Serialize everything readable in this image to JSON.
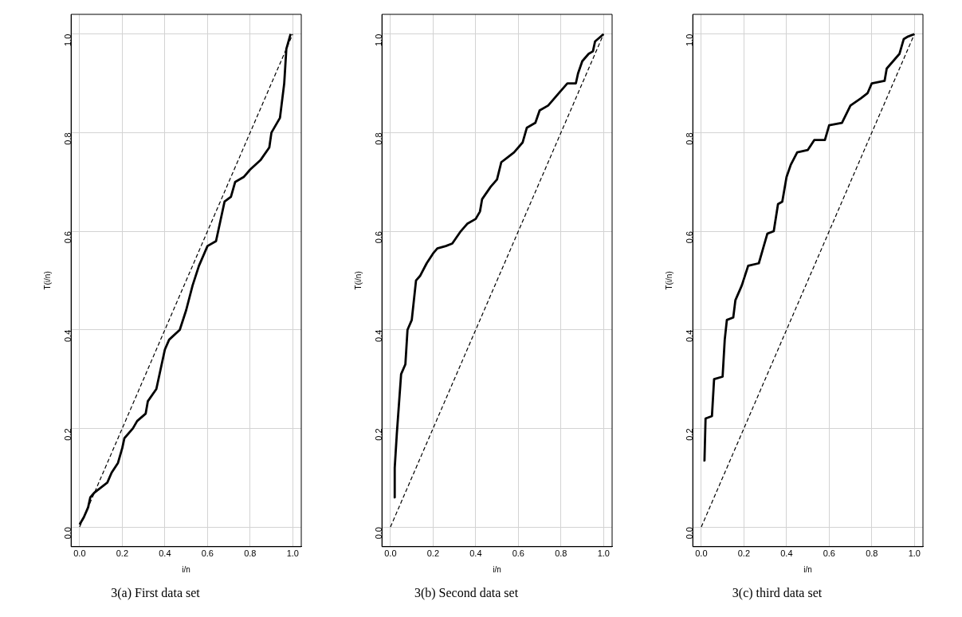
{
  "chart_data": [
    {
      "type": "line",
      "xlabel": "i/n",
      "ylabel": "T(i/n)",
      "annotations": [
        "3(a) First data set"
      ],
      "xlim": [
        -0.04,
        1.04
      ],
      "ylim": [
        -0.04,
        1.04
      ],
      "xticks": [
        {
          "value": 0,
          "label": "0.0"
        },
        {
          "value": 0.2,
          "label": "0.2"
        },
        {
          "value": 0.4,
          "label": "0.4"
        },
        {
          "value": 0.6,
          "label": "0.6"
        },
        {
          "value": 0.8,
          "label": "0.8"
        },
        {
          "value": 1,
          "label": "1.0"
        }
      ],
      "yticks": [
        {
          "value": 0,
          "label": "0.0"
        },
        {
          "value": 0.2,
          "label": "0.2"
        },
        {
          "value": 0.4,
          "label": "0.4"
        },
        {
          "value": 0.6,
          "label": "0.6"
        },
        {
          "value": 0.8,
          "label": "0.8"
        },
        {
          "value": 1,
          "label": "1.0"
        }
      ],
      "grid": true,
      "legend": false,
      "marker": "none",
      "series": [
        {
          "color": "#000000",
          "line_style": "solid",
          "x": [
            0,
            0.02,
            0.04,
            0.05,
            0.07,
            0.1,
            0.13,
            0.15,
            0.18,
            0.2,
            0.21,
            0.25,
            0.27,
            0.31,
            0.32,
            0.36,
            0.38,
            0.4,
            0.42,
            0.47,
            0.5,
            0.53,
            0.56,
            0.6,
            0.64,
            0.66,
            0.68,
            0.71,
            0.73,
            0.77,
            0.8,
            0.85,
            0.89,
            0.9,
            0.94,
            0.96,
            0.97,
            0.99
          ],
          "values": [
            0.005,
            0.02,
            0.04,
            0.06,
            0.07,
            0.08,
            0.09,
            0.11,
            0.13,
            0.16,
            0.18,
            0.2,
            0.215,
            0.23,
            0.255,
            0.28,
            0.32,
            0.36,
            0.38,
            0.4,
            0.44,
            0.49,
            0.53,
            0.57,
            0.58,
            0.62,
            0.66,
            0.67,
            0.7,
            0.71,
            0.725,
            0.745,
            0.77,
            0.8,
            0.83,
            0.9,
            0.97,
            1.0
          ]
        },
        {
          "color": "#000000",
          "line_style": "dashed",
          "x": [
            0,
            1
          ],
          "values": [
            0,
            1
          ]
        }
      ]
    },
    {
      "type": "line",
      "xlabel": "i/n",
      "ylabel": "T(i/n)",
      "annotations": [
        "3(b) Second data set"
      ],
      "xlim": [
        -0.04,
        1.04
      ],
      "ylim": [
        -0.04,
        1.04
      ],
      "xticks": [
        {
          "value": 0,
          "label": "0.0"
        },
        {
          "value": 0.2,
          "label": "0.2"
        },
        {
          "value": 0.4,
          "label": "0.4"
        },
        {
          "value": 0.6,
          "label": "0.6"
        },
        {
          "value": 0.8,
          "label": "0.8"
        },
        {
          "value": 1,
          "label": "1.0"
        }
      ],
      "yticks": [
        {
          "value": 0,
          "label": "0.0"
        },
        {
          "value": 0.2,
          "label": "0.2"
        },
        {
          "value": 0.4,
          "label": "0.4"
        },
        {
          "value": 0.6,
          "label": "0.6"
        },
        {
          "value": 0.8,
          "label": "0.8"
        },
        {
          "value": 1,
          "label": "1.0"
        }
      ],
      "grid": true,
      "legend": false,
      "marker": "none",
      "series": [
        {
          "color": "#000000",
          "line_style": "solid",
          "x": [
            0.015,
            0.02,
            0.02,
            0.03,
            0.04,
            0.05,
            0.07,
            0.08,
            0.1,
            0.12,
            0.14,
            0.17,
            0.2,
            0.22,
            0.26,
            0.29,
            0.33,
            0.36,
            0.4,
            0.42,
            0.43,
            0.47,
            0.5,
            0.52,
            0.55,
            0.58,
            0.62,
            0.64,
            0.68,
            0.7,
            0.74,
            0.79,
            0.83,
            0.87,
            0.88,
            0.9,
            0.93,
            0.95,
            0.96,
            1
          ],
          "values": [
            0.06,
            0.06,
            0.12,
            0.19,
            0.25,
            0.31,
            0.33,
            0.4,
            0.42,
            0.5,
            0.51,
            0.535,
            0.555,
            0.565,
            0.57,
            0.575,
            0.6,
            0.615,
            0.625,
            0.64,
            0.665,
            0.69,
            0.705,
            0.74,
            0.75,
            0.76,
            0.78,
            0.81,
            0.82,
            0.845,
            0.855,
            0.88,
            0.9,
            0.9,
            0.92,
            0.945,
            0.96,
            0.965,
            0.985,
            1
          ]
        },
        {
          "color": "#000000",
          "line_style": "dashed",
          "x": [
            0,
            1
          ],
          "values": [
            0,
            1
          ]
        }
      ]
    },
    {
      "type": "line",
      "xlabel": "i/n",
      "ylabel": "T(i/n)",
      "annotations": [
        "3(c) third data set"
      ],
      "xlim": [
        -0.04,
        1.04
      ],
      "ylim": [
        -0.04,
        1.04
      ],
      "xticks": [
        {
          "value": 0,
          "label": "0.0"
        },
        {
          "value": 0.2,
          "label": "0.2"
        },
        {
          "value": 0.4,
          "label": "0.4"
        },
        {
          "value": 0.6,
          "label": "0.6"
        },
        {
          "value": 0.8,
          "label": "0.8"
        },
        {
          "value": 1,
          "label": "1.0"
        }
      ],
      "yticks": [
        {
          "value": 0,
          "label": "0.0"
        },
        {
          "value": 0.2,
          "label": "0.2"
        },
        {
          "value": 0.4,
          "label": "0.4"
        },
        {
          "value": 0.6,
          "label": "0.6"
        },
        {
          "value": 0.8,
          "label": "0.8"
        },
        {
          "value": 1,
          "label": "1.0"
        }
      ],
      "grid": true,
      "legend": false,
      "marker": "none",
      "series": [
        {
          "color": "#000000",
          "line_style": "solid",
          "x": [
            0.01,
            0.015,
            0.02,
            0.05,
            0.06,
            0.1,
            0.11,
            0.12,
            0.15,
            0.16,
            0.19,
            0.22,
            0.27,
            0.29,
            0.31,
            0.34,
            0.36,
            0.38,
            0.4,
            0.42,
            0.45,
            0.5,
            0.53,
            0.58,
            0.6,
            0.66,
            0.7,
            0.75,
            0.78,
            0.8,
            0.86,
            0.87,
            0.9,
            0.93,
            0.95,
            0.97,
            1
          ],
          "values": [
            0.135,
            0.135,
            0.22,
            0.225,
            0.3,
            0.305,
            0.38,
            0.42,
            0.425,
            0.46,
            0.49,
            0.53,
            0.535,
            0.565,
            0.595,
            0.6,
            0.655,
            0.66,
            0.71,
            0.735,
            0.76,
            0.765,
            0.785,
            0.785,
            0.815,
            0.82,
            0.855,
            0.87,
            0.88,
            0.9,
            0.905,
            0.93,
            0.945,
            0.96,
            0.99,
            0.995,
            1
          ]
        },
        {
          "color": "#000000",
          "line_style": "dashed",
          "x": [
            0,
            1
          ],
          "values": [
            0,
            1
          ]
        }
      ]
    }
  ]
}
